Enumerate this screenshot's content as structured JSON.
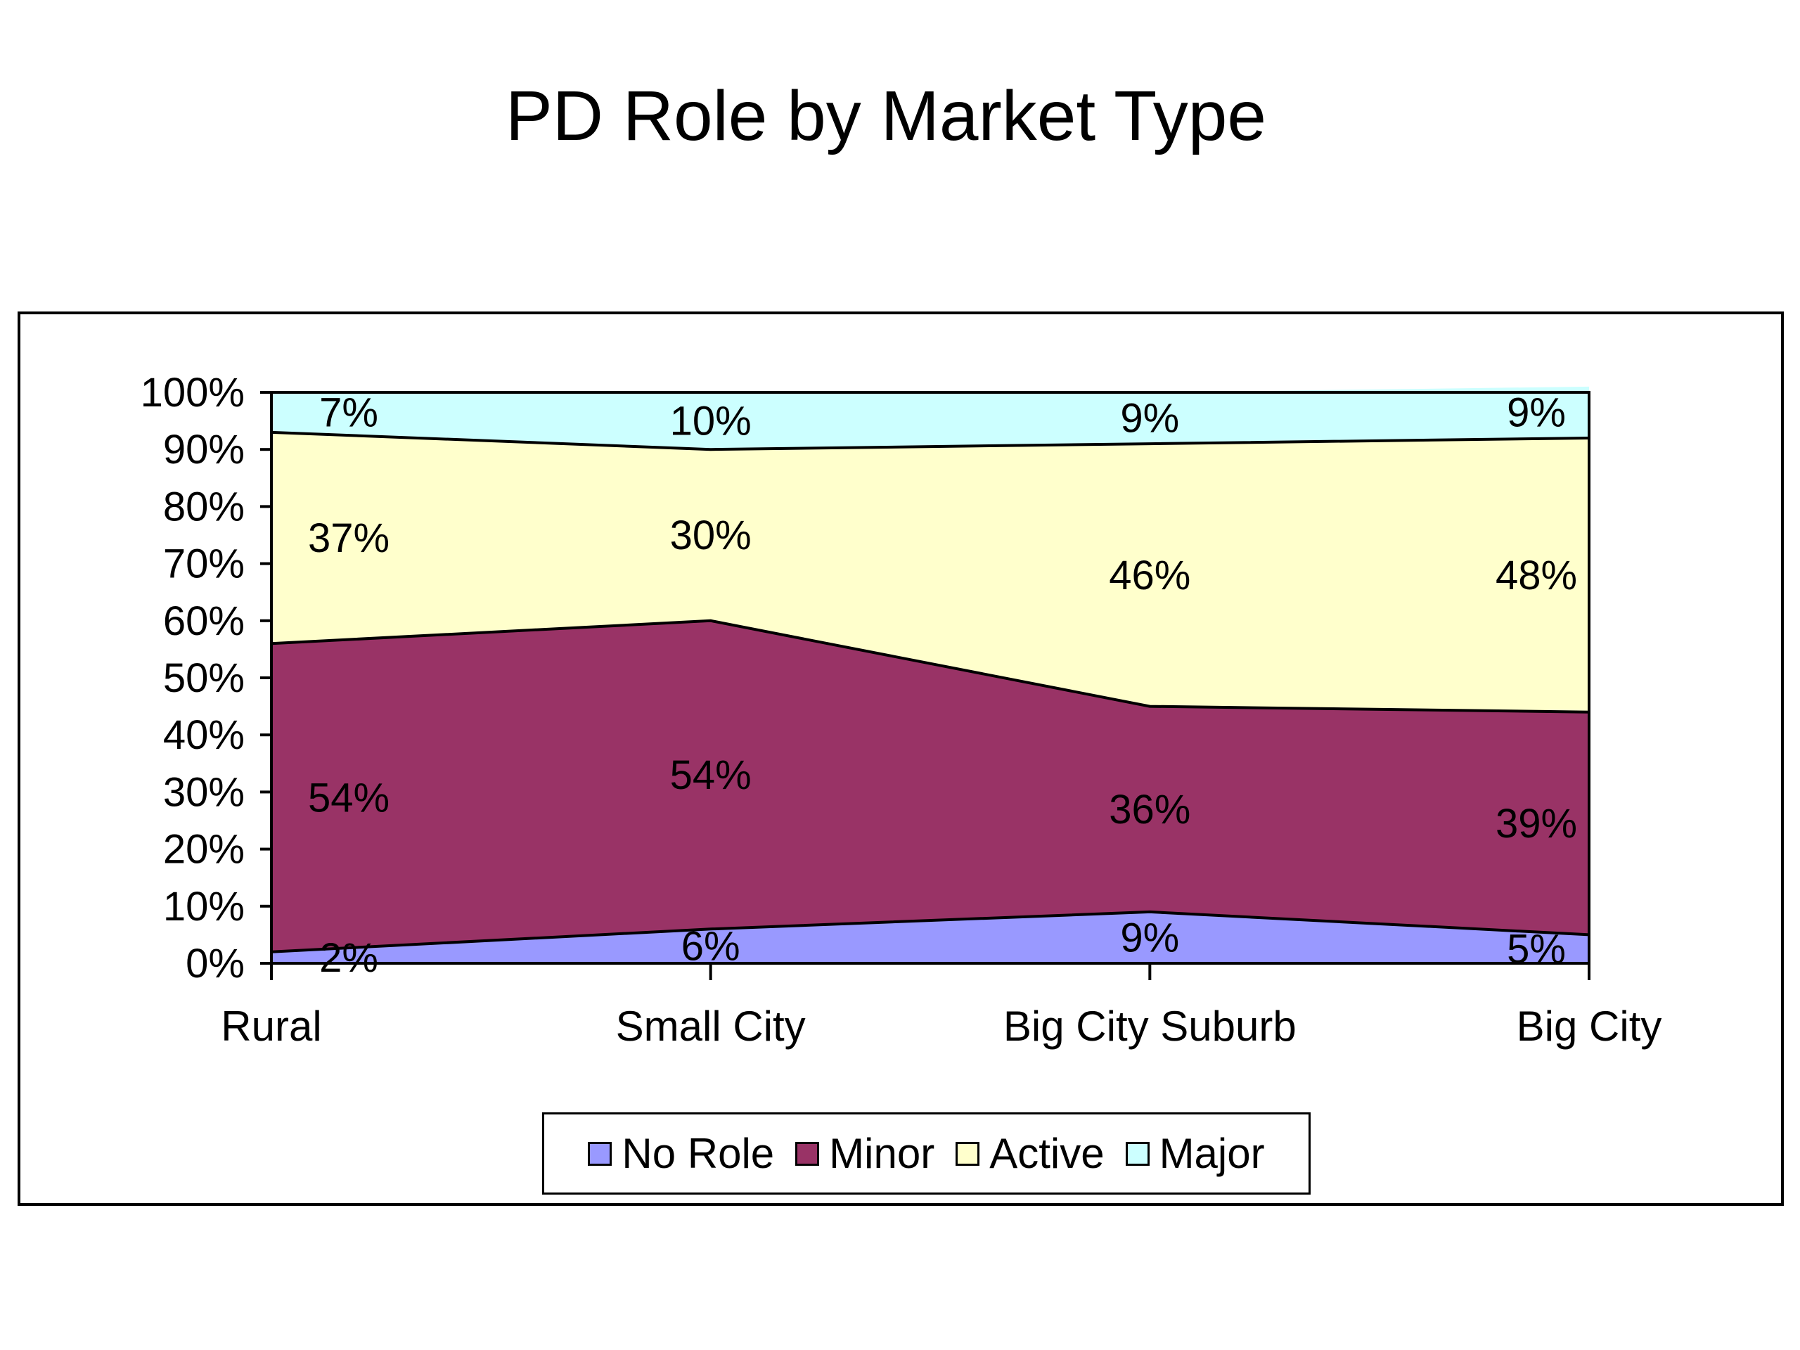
{
  "chart_data": {
    "type": "area",
    "stacked": "percent",
    "title": "PD Role by Market Type",
    "categories": [
      "Rural",
      "Small City",
      "Big City Suburb",
      "Big City"
    ],
    "series": [
      {
        "name": "No Role",
        "values": [
          2,
          6,
          9,
          5
        ],
        "labels": [
          "2%",
          "6%",
          "9%",
          "5%"
        ],
        "color": "#9999ff"
      },
      {
        "name": "Minor",
        "values": [
          54,
          54,
          36,
          39
        ],
        "labels": [
          "54%",
          "54%",
          "36%",
          "39%"
        ],
        "color": "#993366"
      },
      {
        "name": "Active",
        "values": [
          37,
          30,
          46,
          48
        ],
        "labels": [
          "37%",
          "30%",
          "46%",
          "48%"
        ],
        "color": "#ffffcc"
      },
      {
        "name": "Major",
        "values": [
          7,
          10,
          9,
          9
        ],
        "labels": [
          "7%",
          "10%",
          "9%",
          "9%"
        ],
        "color": "#ccffff"
      }
    ],
    "ylim": [
      0,
      100
    ],
    "yticks": [
      "0%",
      "10%",
      "20%",
      "30%",
      "40%",
      "50%",
      "60%",
      "70%",
      "80%",
      "90%",
      "100%"
    ],
    "grid": false,
    "legend_position": "bottom"
  }
}
